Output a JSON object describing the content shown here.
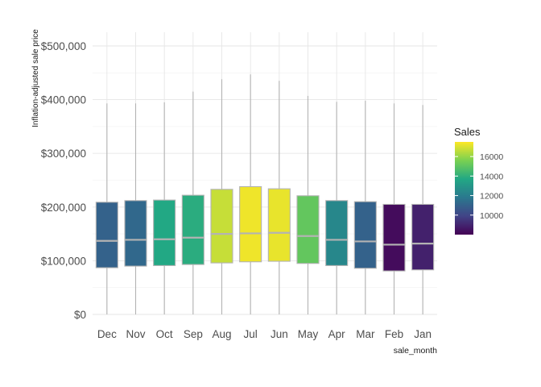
{
  "chart_data": {
    "type": "box",
    "title": "",
    "xlabel": "sale_month",
    "ylabel": "Inflation-adjusted sale price",
    "ylim": [
      0,
      520000
    ],
    "yticks": [
      0,
      100000,
      200000,
      300000,
      400000,
      500000
    ],
    "ytick_labels": [
      "$0",
      "$100,000",
      "$200,000",
      "$300,000",
      "$400,000",
      "$500,000"
    ],
    "grid": true,
    "categories": [
      "Dec",
      "Nov",
      "Oct",
      "Sep",
      "Aug",
      "Jul",
      "Jun",
      "May",
      "Apr",
      "Mar",
      "Feb",
      "Jan"
    ],
    "boxes": [
      {
        "month": "Dec",
        "min": 0,
        "q1": 87000,
        "median": 137000,
        "q3": 209000,
        "max": 393000,
        "sales": 11000
      },
      {
        "month": "Nov",
        "min": 0,
        "q1": 90000,
        "median": 139000,
        "q3": 212000,
        "max": 393000,
        "sales": 11200
      },
      {
        "month": "Oct",
        "min": 0,
        "q1": 91000,
        "median": 140000,
        "q3": 213000,
        "max": 395000,
        "sales": 13700
      },
      {
        "month": "Sep",
        "min": 0,
        "q1": 93000,
        "median": 143000,
        "q3": 222000,
        "max": 415000,
        "sales": 13900
      },
      {
        "month": "Aug",
        "min": 0,
        "q1": 96000,
        "median": 150000,
        "q3": 233000,
        "max": 438000,
        "sales": 16700
      },
      {
        "month": "Jul",
        "min": 0,
        "q1": 98000,
        "median": 151000,
        "q3": 238000,
        "max": 447000,
        "sales": 17300
      },
      {
        "month": "Jun",
        "min": 0,
        "q1": 99000,
        "median": 152000,
        "q3": 234000,
        "max": 435000,
        "sales": 17200
      },
      {
        "month": "May",
        "min": 0,
        "q1": 95000,
        "median": 146000,
        "q3": 221000,
        "max": 407000,
        "sales": 15100
      },
      {
        "month": "Apr",
        "min": 0,
        "q1": 91000,
        "median": 139000,
        "q3": 212000,
        "max": 396000,
        "sales": 12400
      },
      {
        "month": "Mar",
        "min": 0,
        "q1": 86000,
        "median": 136000,
        "q3": 210000,
        "max": 398000,
        "sales": 11000
      },
      {
        "month": "Feb",
        "min": 0,
        "q1": 81000,
        "median": 130000,
        "q3": 205000,
        "max": 393000,
        "sales": 8300
      },
      {
        "month": "Jan",
        "min": 0,
        "q1": 83000,
        "median": 132000,
        "q3": 205000,
        "max": 390000,
        "sales": 8900
      }
    ],
    "legend": {
      "title": "Sales",
      "position": "right",
      "min": 8000,
      "max": 17500,
      "ticks": [
        10000,
        12000,
        14000,
        16000
      ],
      "tick_labels": [
        "10000",
        "12000",
        "14000",
        "16000"
      ]
    },
    "colors": {
      "colormap": [
        "#440154",
        "#414487",
        "#2a788e",
        "#22a884",
        "#7ad151",
        "#fde725"
      ],
      "box_outline": "#b3b3b3",
      "whisker": "#b3b3b3",
      "median": "#b3b3b3",
      "grid": "#e6e6e6",
      "text": "#333333"
    }
  }
}
